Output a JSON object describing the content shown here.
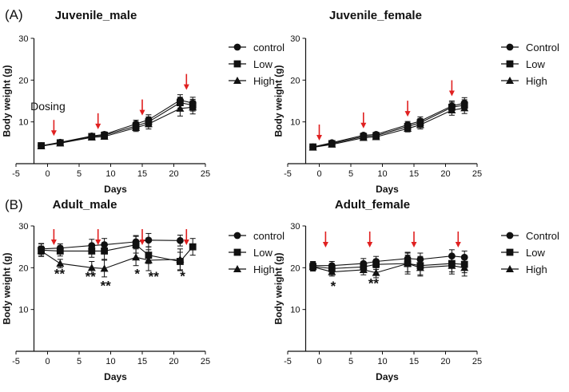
{
  "panels": {
    "a": "(A)",
    "b": "(B)"
  },
  "colors": {
    "ink": "#111111",
    "arrow": "#e02020"
  },
  "chart_data": [
    {
      "type": "line",
      "title": "Juvenile_male",
      "xlabel": "Days",
      "ylabel": "Body weight (g)",
      "xlim": [
        -5,
        25
      ],
      "ylim": [
        0,
        30
      ],
      "xticks": [
        -5,
        0,
        5,
        10,
        15,
        20,
        25
      ],
      "yticks": [
        10,
        20,
        30
      ],
      "annotation": "Dosing",
      "dosing_days": [
        1,
        8,
        15,
        22
      ],
      "series": [
        {
          "name": "control",
          "marker": "circle",
          "x": [
            -1,
            2,
            7,
            9,
            14,
            16,
            21,
            23
          ],
          "y": [
            4.3,
            5.1,
            6.6,
            7.0,
            9.5,
            10.5,
            15.2,
            14.5
          ],
          "err": [
            0.4,
            0.4,
            0.5,
            0.6,
            0.9,
            1.2,
            1.3,
            1.4
          ]
        },
        {
          "name": "Low",
          "marker": "square",
          "x": [
            -1,
            2,
            7,
            9,
            14,
            16,
            21,
            23
          ],
          "y": [
            4.3,
            5.0,
            6.5,
            6.8,
            9.0,
            10.0,
            14.6,
            14.0
          ],
          "err": [
            0.4,
            0.4,
            0.5,
            0.6,
            0.9,
            1.2,
            1.3,
            1.4
          ]
        },
        {
          "name": "High",
          "marker": "triangle",
          "x": [
            -1,
            2,
            7,
            9,
            14,
            16,
            21,
            23
          ],
          "y": [
            4.2,
            4.9,
            6.3,
            6.5,
            8.6,
            9.5,
            13.2,
            13.5
          ],
          "err": [
            0.4,
            0.4,
            0.5,
            0.6,
            0.9,
            1.2,
            1.8,
            1.6
          ]
        }
      ],
      "stars": []
    },
    {
      "type": "line",
      "title": "Juvenile_female",
      "xlabel": "Days",
      "ylabel": "Body weight (g)",
      "xlim": [
        -5,
        25
      ],
      "ylim": [
        0,
        30
      ],
      "xticks": [
        -5,
        0,
        5,
        10,
        15,
        20,
        25
      ],
      "yticks": [
        10,
        20,
        30
      ],
      "dosing_days": [
        0,
        7,
        14,
        21
      ],
      "series": [
        {
          "name": "Control",
          "marker": "circle",
          "x": [
            -1,
            2,
            7,
            9,
            14,
            16,
            21,
            23
          ],
          "y": [
            4.0,
            5.0,
            6.8,
            7.0,
            9.3,
            10.2,
            13.8,
            14.5
          ],
          "err": [
            0.4,
            0.4,
            0.5,
            0.5,
            0.8,
            1.0,
            1.2,
            1.3
          ]
        },
        {
          "name": "Low",
          "marker": "square",
          "x": [
            -1,
            2,
            7,
            9,
            14,
            16,
            21,
            23
          ],
          "y": [
            4.0,
            4.8,
            6.5,
            6.7,
            8.9,
            9.8,
            13.5,
            14.0
          ],
          "err": [
            0.4,
            0.4,
            0.5,
            0.5,
            0.8,
            1.0,
            1.2,
            1.3
          ]
        },
        {
          "name": "High",
          "marker": "triangle",
          "x": [
            -1,
            2,
            7,
            9,
            14,
            16,
            21,
            23
          ],
          "y": [
            3.9,
            4.6,
            6.2,
            6.4,
            8.4,
            9.3,
            12.8,
            13.3
          ],
          "err": [
            0.4,
            0.4,
            0.5,
            0.5,
            0.8,
            1.0,
            1.2,
            1.3
          ]
        }
      ],
      "stars": []
    },
    {
      "type": "line",
      "title": "Adult_male",
      "xlabel": "Days",
      "ylabel": "Body weight (g)",
      "xlim": [
        -5,
        25
      ],
      "ylim": [
        0,
        30
      ],
      "xticks": [
        -5,
        0,
        5,
        10,
        15,
        20,
        25
      ],
      "yticks": [
        10,
        20,
        30
      ],
      "dosing_days": [
        1,
        8,
        15,
        22
      ],
      "series": [
        {
          "name": "control",
          "marker": "circle",
          "x": [
            -1,
            2,
            7,
            9,
            14,
            16,
            21
          ],
          "y": [
            24.5,
            24.7,
            25.3,
            25.5,
            26.2,
            26.6,
            26.5
          ],
          "err": [
            1.3,
            1.0,
            1.5,
            1.5,
            1.5,
            1.6,
            1.3
          ]
        },
        {
          "name": "Low",
          "marker": "square",
          "x": [
            -1,
            2,
            7,
            9,
            14,
            16,
            21,
            23
          ],
          "y": [
            24.2,
            24.0,
            24.0,
            24.0,
            25.5,
            23.0,
            21.5,
            25.0
          ],
          "err": [
            1.5,
            1.2,
            1.5,
            2.0,
            2.0,
            2.0,
            2.2,
            2.0
          ]
        },
        {
          "name": "High",
          "marker": "triangle",
          "x": [
            -1,
            2,
            7,
            9,
            14,
            16,
            21
          ],
          "y": [
            24.0,
            21.0,
            20.0,
            19.8,
            22.5,
            21.8,
            22.0
          ],
          "err": [
            1.2,
            1.0,
            1.5,
            2.0,
            2.0,
            2.5,
            2.5
          ]
        }
      ],
      "stars": [
        {
          "x": 1.9,
          "y": 17.5,
          "text": "**"
        },
        {
          "x": 6.8,
          "y": 16.8,
          "text": "**"
        },
        {
          "x": 9.2,
          "y": 14.6,
          "text": "**"
        },
        {
          "x": 14.2,
          "y": 17.5,
          "text": "*"
        },
        {
          "x": 16.8,
          "y": 16.8,
          "text": "**"
        },
        {
          "x": 21.4,
          "y": 16.9,
          "text": "*"
        }
      ]
    },
    {
      "type": "line",
      "title": "Adult_female",
      "xlabel": "Days",
      "ylabel": "Body weight (g)",
      "xlim": [
        -5,
        25
      ],
      "ylim": [
        0,
        30
      ],
      "xticks": [
        -5,
        0,
        5,
        10,
        15,
        20,
        25
      ],
      "yticks": [
        10,
        20,
        30
      ],
      "dosing_days": [
        1,
        8,
        15,
        22
      ],
      "series": [
        {
          "name": "Control",
          "marker": "circle",
          "x": [
            -1,
            2,
            7,
            9,
            14,
            16,
            21,
            23
          ],
          "y": [
            20.5,
            20.5,
            21.0,
            21.5,
            22.2,
            22.0,
            22.8,
            22.5
          ],
          "err": [
            1.0,
            1.0,
            1.2,
            1.2,
            1.5,
            1.5,
            1.5,
            1.5
          ]
        },
        {
          "name": "Low",
          "marker": "square",
          "x": [
            -1,
            2,
            7,
            9,
            14,
            16,
            21,
            23
          ],
          "y": [
            20.3,
            19.8,
            20.2,
            20.8,
            21.0,
            20.5,
            21.0,
            20.8
          ],
          "err": [
            1.0,
            1.0,
            1.2,
            1.2,
            2.5,
            2.2,
            2.0,
            2.0
          ]
        },
        {
          "name": "High",
          "marker": "triangle",
          "x": [
            -1,
            2,
            7,
            9,
            14,
            16,
            21,
            23
          ],
          "y": [
            20.2,
            19.0,
            19.5,
            18.8,
            21.0,
            20.0,
            20.5,
            20.0
          ],
          "err": [
            1.0,
            1.0,
            1.2,
            1.2,
            2.0,
            2.0,
            2.0,
            2.0
          ]
        }
      ],
      "stars": [
        {
          "x": 2.2,
          "y": 14.5,
          "text": "*"
        },
        {
          "x": 8.6,
          "y": 15.2,
          "text": "**"
        }
      ]
    }
  ]
}
